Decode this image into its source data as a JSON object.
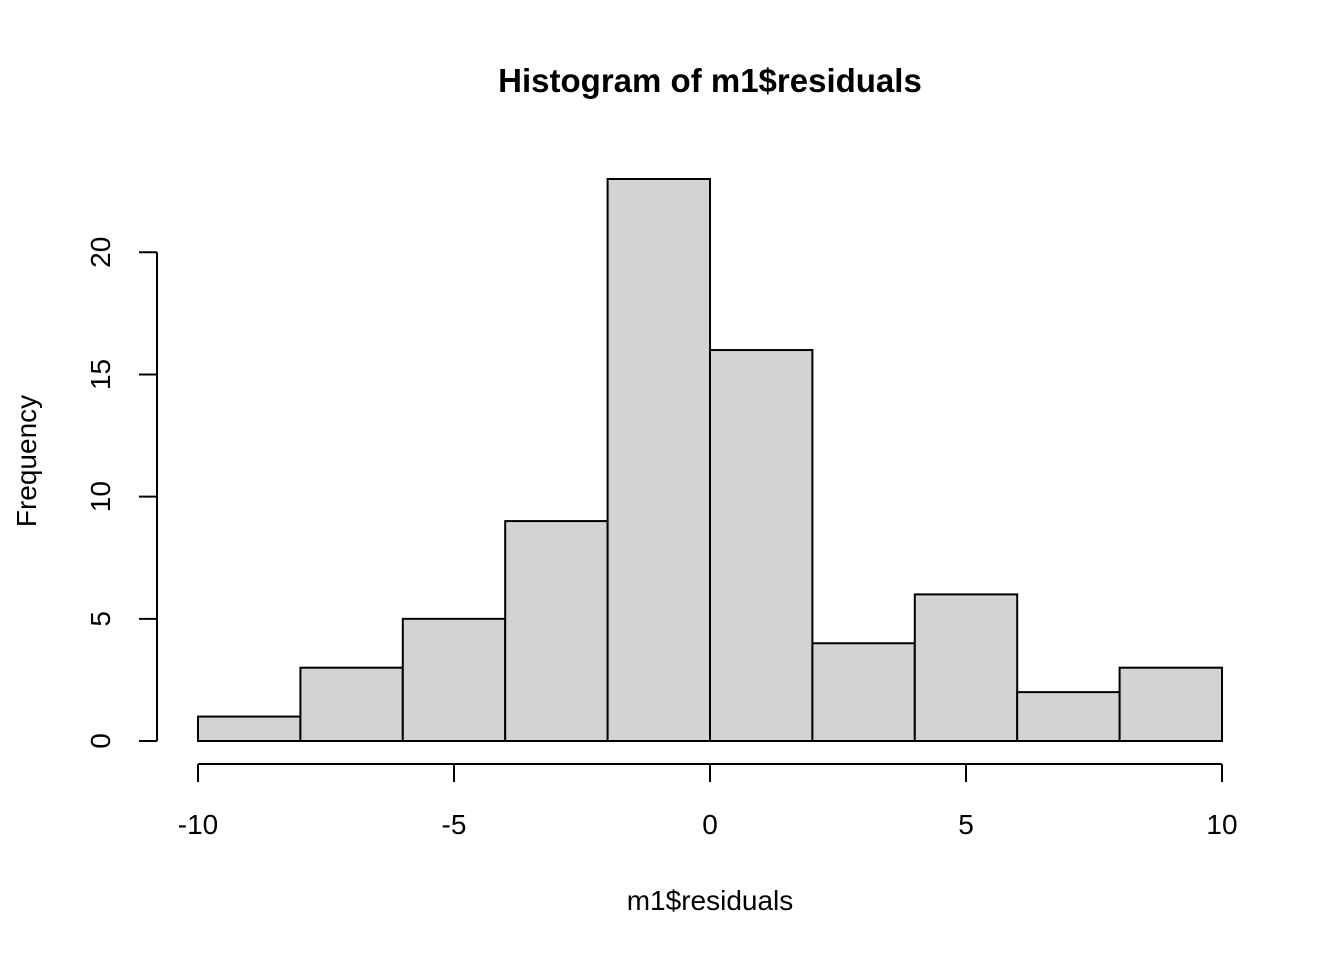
{
  "chart_data": {
    "type": "bar",
    "title": "Histogram of m1$residuals",
    "xlabel": "m1$residuals",
    "ylabel": "Frequency",
    "bins": [
      {
        "start": -10,
        "end": -8,
        "count": 1
      },
      {
        "start": -8,
        "end": -6,
        "count": 3
      },
      {
        "start": -6,
        "end": -4,
        "count": 5
      },
      {
        "start": -4,
        "end": -2,
        "count": 9
      },
      {
        "start": -2,
        "end": 0,
        "count": 23
      },
      {
        "start": 0,
        "end": 2,
        "count": 16
      },
      {
        "start": 2,
        "end": 4,
        "count": 4
      },
      {
        "start": 4,
        "end": 6,
        "count": 6
      },
      {
        "start": 6,
        "end": 8,
        "count": 2
      },
      {
        "start": 8,
        "end": 10,
        "count": 3
      }
    ],
    "xlim": [
      -10,
      10
    ],
    "ylim": [
      0,
      23
    ],
    "x_ticks": [
      -10,
      -5,
      0,
      5,
      10
    ],
    "x_tick_labels": [
      "-10",
      "-5",
      "0",
      "5",
      "10"
    ],
    "y_ticks": [
      0,
      5,
      10,
      15,
      20
    ],
    "y_tick_labels": [
      "0",
      "5",
      "10",
      "15",
      "20"
    ],
    "bar_fill": "#d3d3d3",
    "bar_stroke": "#000000",
    "grid": false,
    "legend": "none"
  }
}
